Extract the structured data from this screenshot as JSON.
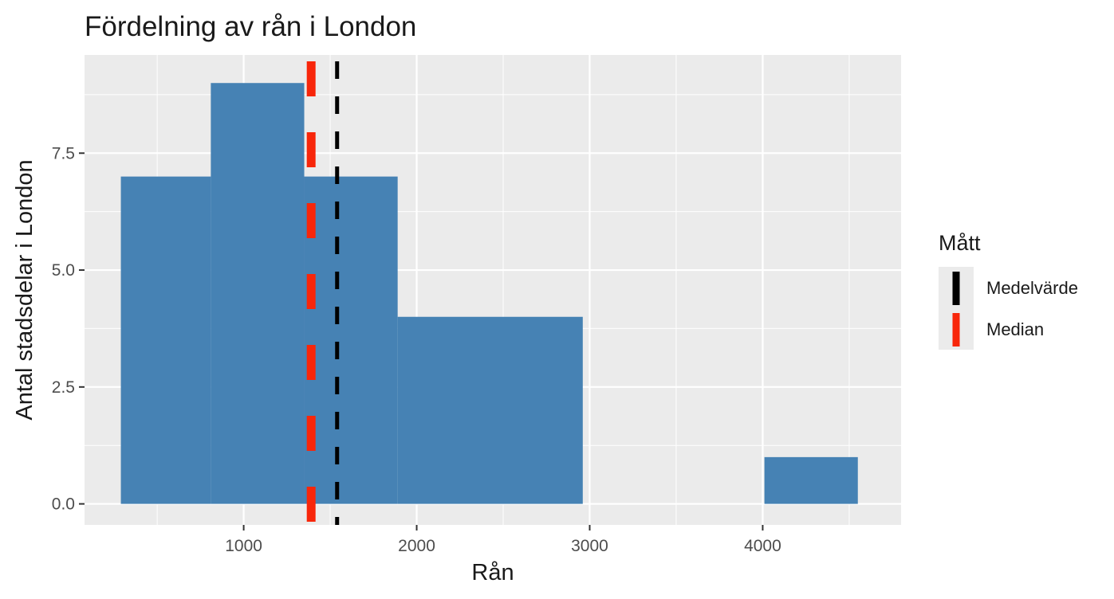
{
  "chart_data": {
    "type": "bar",
    "title": "Fördelning av rån i London",
    "xlabel": "Rån",
    "ylabel": "Antal stadsdelar i London",
    "xlim": [
      80,
      4800
    ],
    "ylim": [
      -0.45,
      9.6
    ],
    "x_ticks": [
      1000,
      2000,
      3000,
      4000
    ],
    "x_tick_labels": [
      "1000",
      "2000",
      "3000",
      "4000"
    ],
    "y_ticks": [
      0,
      2.5,
      5,
      7.5
    ],
    "y_tick_labels": [
      "0.0",
      "2.5",
      "5.0",
      "7.5"
    ],
    "grid": true,
    "bar_color": "#4682B4",
    "bins": [
      {
        "x0": 290,
        "x1": 810,
        "count": 7
      },
      {
        "x0": 810,
        "x1": 1350,
        "count": 9
      },
      {
        "x0": 1350,
        "x1": 1890,
        "count": 7
      },
      {
        "x0": 1890,
        "x1": 2960,
        "count": 4
      },
      {
        "x0": 2960,
        "x1": 4010,
        "count": 0
      },
      {
        "x0": 4010,
        "x1": 4550,
        "count": 1
      }
    ],
    "reference_lines": [
      {
        "name": "Medelvärde",
        "x": 1540,
        "color": "#000000"
      },
      {
        "name": "Median",
        "x": 1390,
        "color": "#F8260A"
      }
    ],
    "legend": {
      "title": "Mått",
      "placement": "right",
      "entries": [
        {
          "label": "Medelvärde",
          "color": "#000000"
        },
        {
          "label": "Median",
          "color": "#F8260A"
        }
      ]
    }
  }
}
